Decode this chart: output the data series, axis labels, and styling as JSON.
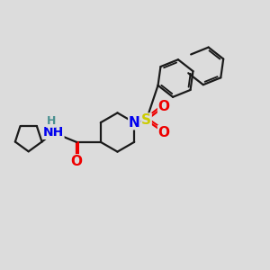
{
  "background_color": "#dcdcdc",
  "bond_color": "#1a1a1a",
  "bond_width": 1.6,
  "atom_colors": {
    "N": "#0000ee",
    "O": "#ee0000",
    "S": "#cccc00",
    "C": "#1a1a1a",
    "H": "#4a9090"
  },
  "fig_width": 3.0,
  "fig_height": 3.0,
  "dpi": 100,
  "xlim": [
    0,
    10
  ],
  "ylim": [
    0,
    10
  ]
}
